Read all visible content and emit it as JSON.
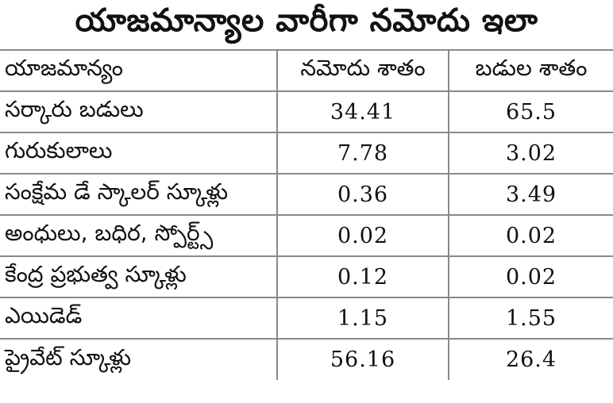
{
  "title": "యాజమాన్యాల వారీగా నమోదు ఇలా",
  "table": {
    "headers": [
      "యాజమాన్యం",
      "నమోదు శాతం",
      "బడుల శాతం"
    ],
    "rows": [
      {
        "name": "సర్కారు బడులు",
        "enrollment": "34.41",
        "schools": "65.5"
      },
      {
        "name": "గురుకులాలు",
        "enrollment": "7.78",
        "schools": "3.02"
      },
      {
        "name": "సంక్షేమ డే స్కాలర్ స్కూళ్లు",
        "enrollment": "0.36",
        "schools": "3.49"
      },
      {
        "name": "అంధులు, బధిర, స్పోర్ట్స్",
        "enrollment": "0.02",
        "schools": "0.02"
      },
      {
        "name": "కేంద్ర ప్రభుత్వ స్కూళ్లు",
        "enrollment": "0.12",
        "schools": "0.02"
      },
      {
        "name": "ఎయిడెడ్",
        "enrollment": "1.15",
        "schools": "1.55"
      },
      {
        "name": "ప్రైవేట్ స్కూళ్లు",
        "enrollment": "56.16",
        "schools": "26.4"
      }
    ]
  }
}
